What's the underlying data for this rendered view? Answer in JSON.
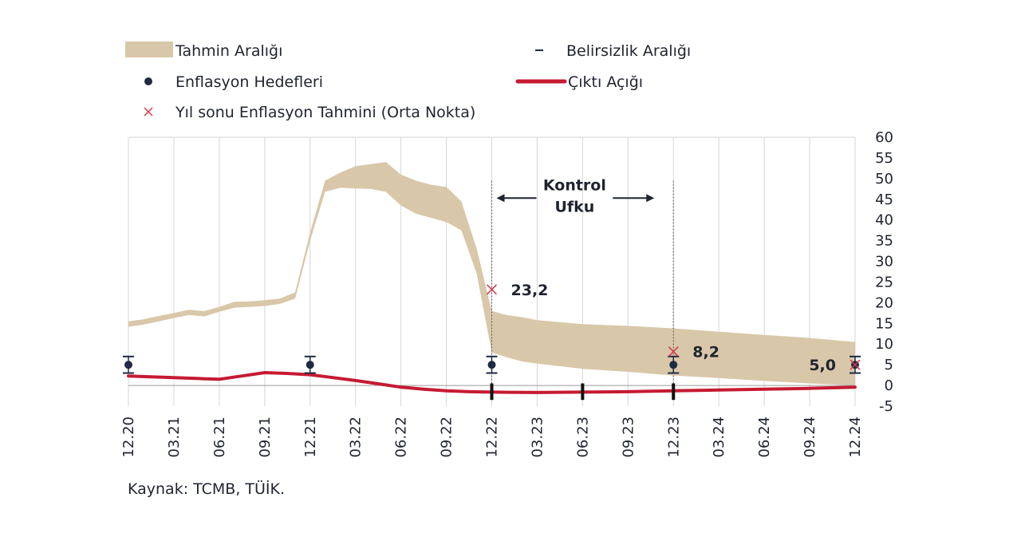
{
  "chart_data": {
    "type": "area",
    "legend": {
      "band": "Tahmin Aralığı",
      "uncertainty": "Belirsizlik Aralığı",
      "targets": "Enflasyon Hedefleri",
      "output_gap": "Çıktı Açığı",
      "yearend": "Yıl sonu Enflasyon Tahmini (Orta Nokta)"
    },
    "x_ticks": [
      "12.20",
      "03.21",
      "06.21",
      "09.21",
      "12.21",
      "03.22",
      "06.22",
      "09.22",
      "12.22",
      "03.23",
      "06.23",
      "09.23",
      "12.23",
      "03.24",
      "06.24",
      "09.24",
      "12.24"
    ],
    "ylim": [
      -5,
      60
    ],
    "y_ticks": [
      60,
      55,
      50,
      45,
      40,
      35,
      30,
      25,
      20,
      15,
      10,
      5,
      0,
      -5
    ],
    "forecast_band": {
      "x": [
        0,
        0.33,
        0.67,
        1,
        1.33,
        1.67,
        2,
        2.33,
        2.67,
        3,
        3.33,
        3.67,
        4,
        4.33,
        4.67,
        5,
        5.33,
        5.67,
        6,
        6.33,
        6.67,
        7,
        7.33,
        7.67,
        8,
        8.33,
        8.67,
        9,
        10,
        11,
        12,
        13,
        14,
        15,
        16
      ],
      "upper": [
        15.5,
        16,
        16.8,
        17.5,
        18.3,
        18,
        19,
        20.2,
        20.3,
        20.6,
        21,
        22.5,
        37,
        49.5,
        51.5,
        53,
        53.5,
        54,
        51,
        49.5,
        48.5,
        48,
        44.5,
        33,
        18,
        17,
        16.5,
        15.8,
        14.8,
        14.4,
        13.8,
        13,
        12.2,
        11.5,
        10.5
      ],
      "lower": [
        14.2,
        14.7,
        15.5,
        16.3,
        17,
        16.7,
        17.8,
        18.8,
        19,
        19.2,
        19.7,
        21,
        35,
        46.8,
        47.8,
        47.6,
        47.5,
        46.8,
        43.5,
        41.5,
        40.5,
        39.5,
        37.5,
        27,
        8,
        6.8,
        5.8,
        5.3,
        4,
        3.3,
        2.4,
        1.8,
        1.1,
        0.5,
        0
      ]
    },
    "output_gap": {
      "x": [
        0,
        0.5,
        1,
        1.5,
        2,
        2.5,
        3,
        3.5,
        4,
        4.5,
        5,
        5.5,
        6,
        6.5,
        7,
        7.5,
        8,
        9,
        10,
        11,
        12,
        13,
        14,
        15,
        16
      ],
      "values": [
        2.3,
        2.1,
        1.9,
        1.7,
        1.5,
        2.3,
        3.1,
        2.9,
        2.6,
        1.9,
        1.2,
        0.4,
        -0.4,
        -0.9,
        -1.3,
        -1.5,
        -1.6,
        -1.7,
        -1.6,
        -1.5,
        -1.3,
        -1.1,
        -0.9,
        -0.7,
        -0.4
      ]
    },
    "targets": [
      {
        "x": 0,
        "value": 5,
        "low": 3,
        "high": 7
      },
      {
        "x": 4,
        "value": 5,
        "low": 3,
        "high": 7
      },
      {
        "x": 8,
        "value": 5,
        "low": 3,
        "high": 7
      },
      {
        "x": 12,
        "value": 5,
        "low": 3,
        "high": 7
      },
      {
        "x": 16,
        "value": 5,
        "low": 3,
        "high": 7
      }
    ],
    "yearend_forecasts": [
      {
        "x": 8,
        "value": 23.2,
        "label": "23,2"
      },
      {
        "x": 12,
        "value": 8.2,
        "label": "8,2"
      },
      {
        "x": 16,
        "value": 5.0,
        "label": "5,0"
      }
    ],
    "output_gap_markers_x": [
      8,
      10,
      12
    ],
    "control_horizon": {
      "start_x": 8,
      "end_x": 12,
      "label_line1": "Kontrol",
      "label_line2": "Ufku"
    },
    "colors": {
      "band": "#d9c7a9",
      "output_gap": "#c61a32",
      "targets": "#1e2b42",
      "yearend": "#d23a4a",
      "zero_line": "#9a9a9a",
      "grid": "#d6d6d6"
    }
  },
  "source_text": "Kaynak: TCMB, TÜİK."
}
